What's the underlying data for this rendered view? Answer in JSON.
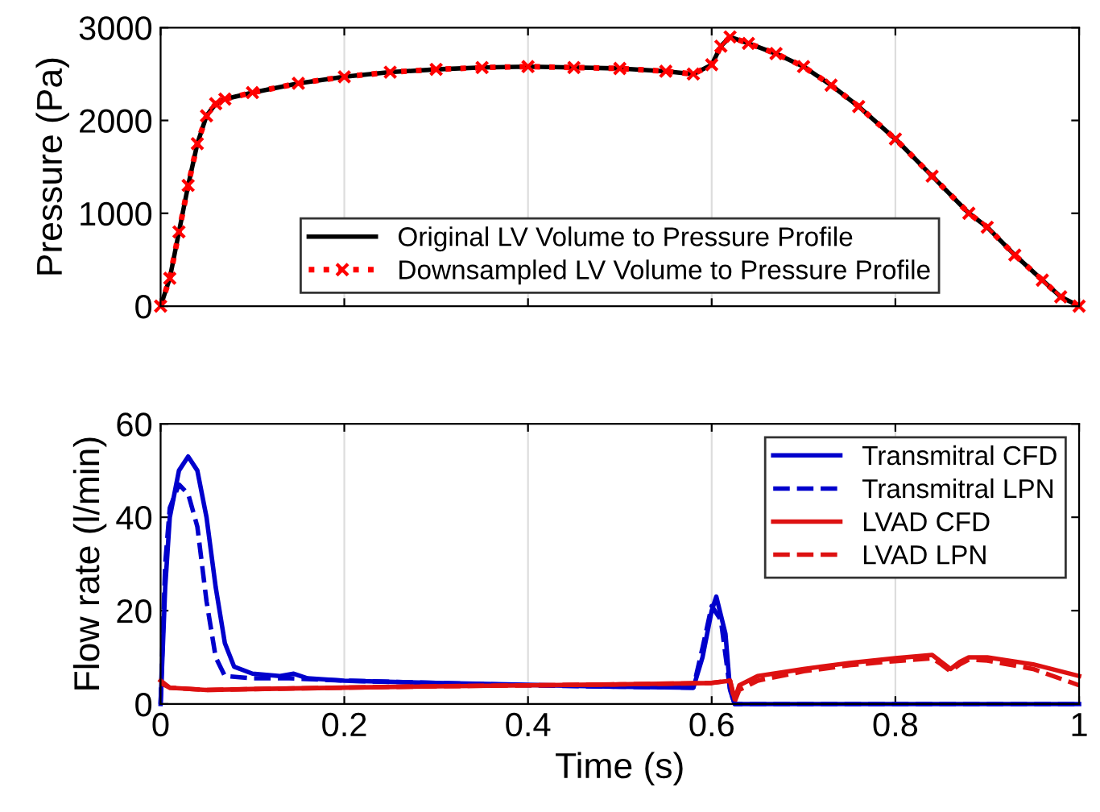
{
  "chart_data": [
    {
      "type": "line",
      "ylabel": "Pressure (Pa)",
      "xlim": [
        0,
        1
      ],
      "xticks": [
        0,
        0.2,
        0.4,
        0.6,
        0.8,
        1
      ],
      "ylim": [
        0,
        3000
      ],
      "yticks": [
        0,
        1000,
        2000,
        3000
      ],
      "grid": "x",
      "legend": "bottom",
      "tick_labels": "y",
      "series": [
        {
          "name": "Original LV Volume to Pressure Profile",
          "color": "#000000",
          "line_style": "solid",
          "marker": "none",
          "x": [
            0,
            0.01,
            0.02,
            0.03,
            0.04,
            0.05,
            0.06,
            0.07,
            0.1,
            0.15,
            0.2,
            0.25,
            0.3,
            0.35,
            0.4,
            0.45,
            0.5,
            0.55,
            0.58,
            0.6,
            0.61,
            0.62,
            0.64,
            0.67,
            0.7,
            0.73,
            0.76,
            0.8,
            0.84,
            0.88,
            0.9,
            0.93,
            0.96,
            0.98,
            1.0
          ],
          "values": [
            0,
            300,
            800,
            1300,
            1750,
            2050,
            2180,
            2230,
            2300,
            2400,
            2470,
            2520,
            2550,
            2570,
            2580,
            2570,
            2560,
            2530,
            2500,
            2600,
            2800,
            2900,
            2830,
            2720,
            2580,
            2380,
            2150,
            1800,
            1400,
            1000,
            850,
            550,
            280,
            100,
            0
          ]
        },
        {
          "name": "Downsampled LV Volume to Pressure Profile",
          "color": "#ff0000",
          "line_style": "dotted",
          "marker": "cross",
          "x": [
            0,
            0.01,
            0.02,
            0.03,
            0.04,
            0.05,
            0.06,
            0.07,
            0.1,
            0.15,
            0.2,
            0.25,
            0.3,
            0.35,
            0.4,
            0.45,
            0.5,
            0.55,
            0.58,
            0.6,
            0.61,
            0.62,
            0.64,
            0.67,
            0.7,
            0.73,
            0.76,
            0.8,
            0.84,
            0.88,
            0.9,
            0.93,
            0.96,
            0.98,
            1.0
          ],
          "values": [
            0,
            300,
            800,
            1300,
            1750,
            2050,
            2180,
            2230,
            2300,
            2400,
            2470,
            2520,
            2550,
            2570,
            2580,
            2570,
            2560,
            2530,
            2500,
            2600,
            2800,
            2900,
            2830,
            2720,
            2580,
            2380,
            2150,
            1800,
            1400,
            1000,
            850,
            550,
            280,
            100,
            0
          ]
        }
      ]
    },
    {
      "type": "line",
      "xlabel": "Time (s)",
      "ylabel": "Flow rate (l/min)",
      "xlim": [
        0,
        1
      ],
      "xticks": [
        0,
        0.2,
        0.4,
        0.6,
        0.8,
        1
      ],
      "ylim": [
        0,
        60
      ],
      "yticks": [
        0,
        20,
        40,
        60
      ],
      "grid": "x",
      "legend": "top right",
      "series": [
        {
          "name": "Transmitral CFD",
          "color": "#0000cc",
          "line_style": "solid",
          "x": [
            0,
            0.005,
            0.01,
            0.02,
            0.03,
            0.04,
            0.05,
            0.06,
            0.07,
            0.08,
            0.1,
            0.13,
            0.145,
            0.16,
            0.2,
            0.3,
            0.5,
            0.58,
            0.59,
            0.6,
            0.605,
            0.615,
            0.62,
            0.625,
            1.0
          ],
          "values": [
            0,
            25,
            40,
            50,
            53,
            50,
            40,
            25,
            13,
            8,
            6.5,
            6,
            6.5,
            5.5,
            5,
            4.5,
            3.7,
            3.5,
            10,
            20,
            23,
            15,
            3,
            0,
            0
          ]
        },
        {
          "name": "Transmitral LPN",
          "color": "#0000cc",
          "line_style": "dashed",
          "x": [
            0,
            0.005,
            0.01,
            0.02,
            0.03,
            0.04,
            0.05,
            0.06,
            0.07,
            0.1,
            0.14,
            0.2,
            0.3,
            0.4,
            0.5,
            0.58,
            0.59,
            0.6,
            0.61,
            0.62,
            0.625,
            1.0
          ],
          "values": [
            0,
            30,
            42,
            47,
            45,
            38,
            22,
            10,
            6,
            5.5,
            5.5,
            5,
            4.5,
            4,
            3.7,
            3.5,
            12,
            21,
            18,
            3,
            0,
            0
          ]
        },
        {
          "name": "LVAD CFD",
          "color": "#dd1111",
          "line_style": "solid",
          "x": [
            0,
            0.01,
            0.05,
            0.1,
            0.2,
            0.3,
            0.4,
            0.5,
            0.6,
            0.62,
            0.625,
            0.63,
            0.65,
            0.7,
            0.75,
            0.8,
            0.84,
            0.85,
            0.86,
            0.87,
            0.88,
            0.9,
            0.95,
            1.0
          ],
          "values": [
            5,
            3.5,
            3,
            3.2,
            3.5,
            3.8,
            4,
            4.2,
            4.5,
            5,
            1,
            4,
            6,
            7.5,
            8.8,
            9.8,
            10.5,
            9,
            7.5,
            9,
            10,
            10,
            8.5,
            6
          ]
        },
        {
          "name": "LVAD LPN",
          "color": "#dd1111",
          "line_style": "dashed",
          "x": [
            0,
            0.01,
            0.05,
            0.1,
            0.2,
            0.3,
            0.4,
            0.5,
            0.6,
            0.62,
            0.625,
            0.63,
            0.65,
            0.7,
            0.75,
            0.8,
            0.84,
            0.85,
            0.86,
            0.87,
            0.88,
            0.9,
            0.95,
            1.0
          ],
          "values": [
            4.5,
            3.5,
            3,
            3.2,
            3.5,
            3.8,
            4,
            4.2,
            4.5,
            5,
            0.5,
            3,
            5,
            7,
            8.3,
            9.2,
            9.8,
            8.5,
            7,
            8.5,
            9.5,
            9.3,
            7.5,
            4
          ]
        }
      ]
    }
  ]
}
